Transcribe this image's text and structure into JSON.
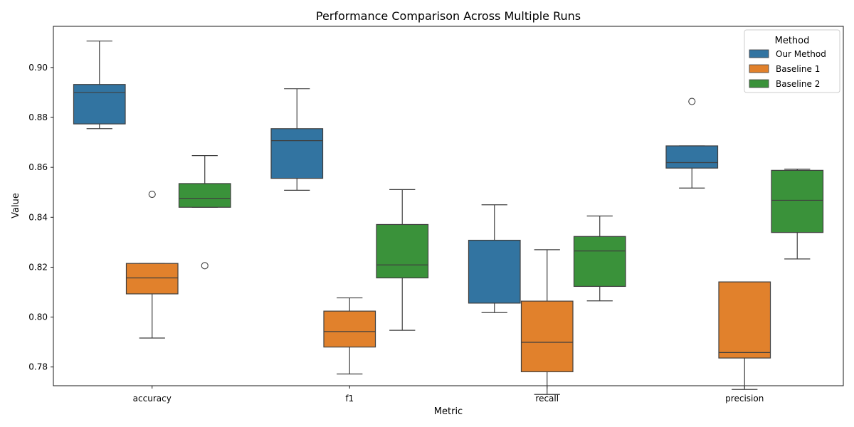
{
  "chart_data": {
    "type": "boxplot",
    "title": "Performance Comparison Across Multiple Runs",
    "xlabel": "Metric",
    "ylabel": "Value",
    "categories": [
      "accuracy",
      "f1",
      "recall",
      "precision"
    ],
    "ylim": [
      0.7725,
      0.9165
    ],
    "yticks": [
      "0.78",
      "0.80",
      "0.82",
      "0.84",
      "0.86",
      "0.88",
      "0.90"
    ],
    "legend": {
      "title": "Method",
      "placement": "top-right"
    },
    "series": [
      {
        "name": "Our Method",
        "color": "#3274a1",
        "boxes": [
          {
            "whisker_low": 0.8755,
            "q1": 0.8774,
            "median": 0.89,
            "q3": 0.8932,
            "whisker_high": 0.9106,
            "outliers": []
          },
          {
            "whisker_low": 0.8508,
            "q1": 0.8556,
            "median": 0.8707,
            "q3": 0.8755,
            "whisker_high": 0.8915,
            "outliers": []
          },
          {
            "whisker_low": 0.8018,
            "q1": 0.8056,
            "median": 0.8308,
            "q3": 0.8308,
            "whisker_high": 0.845,
            "outliers": []
          },
          {
            "whisker_low": 0.8517,
            "q1": 0.8597,
            "median": 0.8619,
            "q3": 0.8686,
            "whisker_high": 0.8686,
            "outliers": [
              0.8864
            ]
          }
        ]
      },
      {
        "name": "Baseline 1",
        "color": "#e1812c",
        "boxes": [
          {
            "whisker_low": 0.7916,
            "q1": 0.8093,
            "median": 0.8157,
            "q3": 0.8215,
            "whisker_high": 0.8215,
            "outliers": [
              0.8492
            ]
          },
          {
            "whisker_low": 0.7772,
            "q1": 0.788,
            "median": 0.7942,
            "q3": 0.8024,
            "whisker_high": 0.8077,
            "outliers": []
          },
          {
            "whisker_low": 0.769,
            "q1": 0.7781,
            "median": 0.7899,
            "q3": 0.8064,
            "whisker_high": 0.827,
            "outliers": []
          },
          {
            "whisker_low": 0.771,
            "q1": 0.7836,
            "median": 0.7858,
            "q3": 0.8141,
            "whisker_high": 0.8141,
            "outliers": []
          }
        ]
      },
      {
        "name": "Baseline 2",
        "color": "#3a923a",
        "boxes": [
          {
            "whisker_low": 0.844,
            "q1": 0.844,
            "median": 0.8476,
            "q3": 0.8535,
            "whisker_high": 0.8647,
            "outliers": [
              0.8206
            ]
          },
          {
            "whisker_low": 0.7947,
            "q1": 0.8157,
            "median": 0.8209,
            "q3": 0.8371,
            "whisker_high": 0.8511,
            "outliers": []
          },
          {
            "whisker_low": 0.8065,
            "q1": 0.8123,
            "median": 0.8265,
            "q3": 0.8323,
            "whisker_high": 0.8405,
            "outliers": []
          },
          {
            "whisker_low": 0.8233,
            "q1": 0.8339,
            "median": 0.8468,
            "q3": 0.8588,
            "whisker_high": 0.8593,
            "outliers": []
          }
        ]
      }
    ]
  }
}
